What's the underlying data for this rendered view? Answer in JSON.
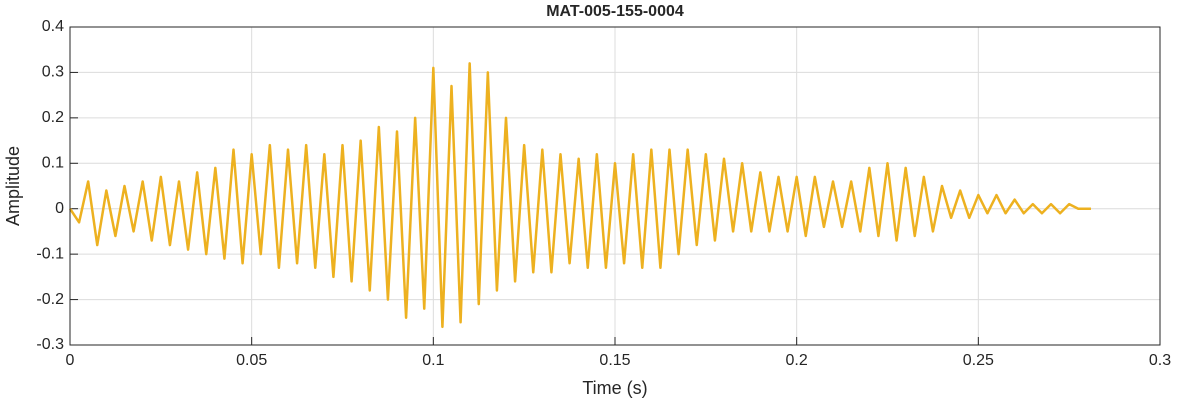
{
  "chart_data": {
    "type": "line",
    "title": "MAT-005-155-0004",
    "xlabel": "Time (s)",
    "ylabel": "Amplitude",
    "x": [
      0,
      0.0025,
      0.005,
      0.0075,
      0.01,
      0.0125,
      0.015,
      0.0175,
      0.02,
      0.0225,
      0.025,
      0.0275,
      0.03,
      0.0325,
      0.035,
      0.0375,
      0.04,
      0.0425,
      0.045,
      0.0475,
      0.05,
      0.0525,
      0.055,
      0.0575,
      0.06,
      0.0625,
      0.065,
      0.0675,
      0.07,
      0.0725,
      0.075,
      0.0775,
      0.08,
      0.0825,
      0.085,
      0.0875,
      0.09,
      0.0925,
      0.095,
      0.0975,
      0.1,
      0.1025,
      0.105,
      0.1075,
      0.11,
      0.1125,
      0.115,
      0.1175,
      0.12,
      0.1225,
      0.125,
      0.1275,
      0.13,
      0.1325,
      0.135,
      0.1375,
      0.14,
      0.1425,
      0.145,
      0.1475,
      0.15,
      0.1525,
      0.155,
      0.1575,
      0.16,
      0.1625,
      0.165,
      0.1675,
      0.17,
      0.1725,
      0.175,
      0.1775,
      0.18,
      0.1825,
      0.185,
      0.1875,
      0.19,
      0.1925,
      0.195,
      0.1975,
      0.2,
      0.2025,
      0.205,
      0.2075,
      0.21,
      0.2125,
      0.215,
      0.2175,
      0.22,
      0.2225,
      0.225,
      0.2275,
      0.23,
      0.2325,
      0.235,
      0.2375,
      0.24,
      0.2425,
      0.245,
      0.2475,
      0.25,
      0.2525,
      0.255,
      0.2575,
      0.26,
      0.2625,
      0.265,
      0.2675,
      0.27,
      0.2725,
      0.275,
      0.2775,
      0.281
    ],
    "series": [
      {
        "color": "#edb120",
        "values": [
          0,
          -0.03,
          0.06,
          -0.08,
          0.04,
          -0.06,
          0.05,
          -0.05,
          0.06,
          -0.07,
          0.07,
          -0.08,
          0.06,
          -0.09,
          0.08,
          -0.1,
          0.09,
          -0.11,
          0.13,
          -0.12,
          0.12,
          -0.1,
          0.14,
          -0.13,
          0.13,
          -0.12,
          0.14,
          -0.13,
          0.12,
          -0.15,
          0.14,
          -0.16,
          0.15,
          -0.18,
          0.18,
          -0.2,
          0.17,
          -0.24,
          0.2,
          -0.22,
          0.31,
          -0.26,
          0.27,
          -0.25,
          0.32,
          -0.21,
          0.3,
          -0.18,
          0.2,
          -0.16,
          0.14,
          -0.14,
          0.13,
          -0.14,
          0.12,
          -0.12,
          0.11,
          -0.13,
          0.12,
          -0.13,
          0.1,
          -0.12,
          0.12,
          -0.13,
          0.13,
          -0.13,
          0.13,
          -0.1,
          0.13,
          -0.08,
          0.12,
          -0.07,
          0.11,
          -0.05,
          0.1,
          -0.05,
          0.08,
          -0.05,
          0.07,
          -0.05,
          0.07,
          -0.06,
          0.07,
          -0.04,
          0.06,
          -0.04,
          0.06,
          -0.05,
          0.09,
          -0.06,
          0.1,
          -0.07,
          0.09,
          -0.06,
          0.07,
          -0.05,
          0.05,
          -0.02,
          0.04,
          -0.02,
          0.03,
          -0.01,
          0.03,
          -0.01,
          0.02,
          -0.01,
          0.01,
          -0.01,
          0.01,
          -0.01,
          0.01,
          0,
          0
        ]
      }
    ],
    "xlim": [
      0,
      0.3
    ],
    "xticks": [
      0,
      0.05,
      0.1,
      0.15,
      0.2,
      0.25,
      0.3
    ],
    "ylim": [
      -0.3,
      0.4
    ],
    "yticks": [
      -0.3,
      -0.2,
      -0.1,
      0,
      0.1,
      0.2,
      0.3,
      0.4
    ],
    "grid": true
  }
}
